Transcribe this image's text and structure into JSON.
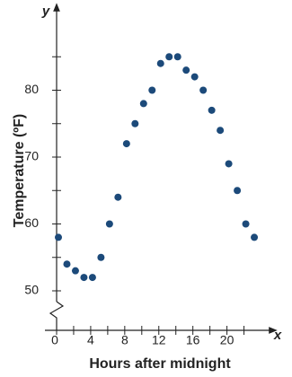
{
  "chart_data": {
    "type": "scatter",
    "x_label": "Hours after midnight",
    "y_label": "Temperature (ºF)",
    "x_axis_letter": "x",
    "y_axis_letter": "y",
    "x": [
      0,
      1,
      2,
      3,
      4,
      5,
      6,
      7,
      8,
      9,
      10,
      11,
      12,
      13,
      14,
      15,
      16,
      17,
      18,
      19,
      20,
      21,
      22,
      23
    ],
    "values": [
      58,
      54,
      53,
      52,
      52,
      55,
      60,
      64,
      72,
      75,
      78,
      80,
      84,
      85,
      85,
      83,
      82,
      80,
      77,
      74,
      69,
      65,
      60,
      58
    ],
    "color": "#1c4a7a",
    "xlim": [
      0,
      25
    ],
    "xticks": [
      0,
      4,
      8,
      12,
      16,
      20
    ],
    "xminorticks": [
      2,
      6,
      10,
      14,
      18,
      22
    ],
    "ylim": [
      44,
      92
    ],
    "yticks": [
      50,
      60,
      70,
      80
    ],
    "yminorticks": [
      55,
      65,
      75,
      85
    ],
    "grid": false
  }
}
